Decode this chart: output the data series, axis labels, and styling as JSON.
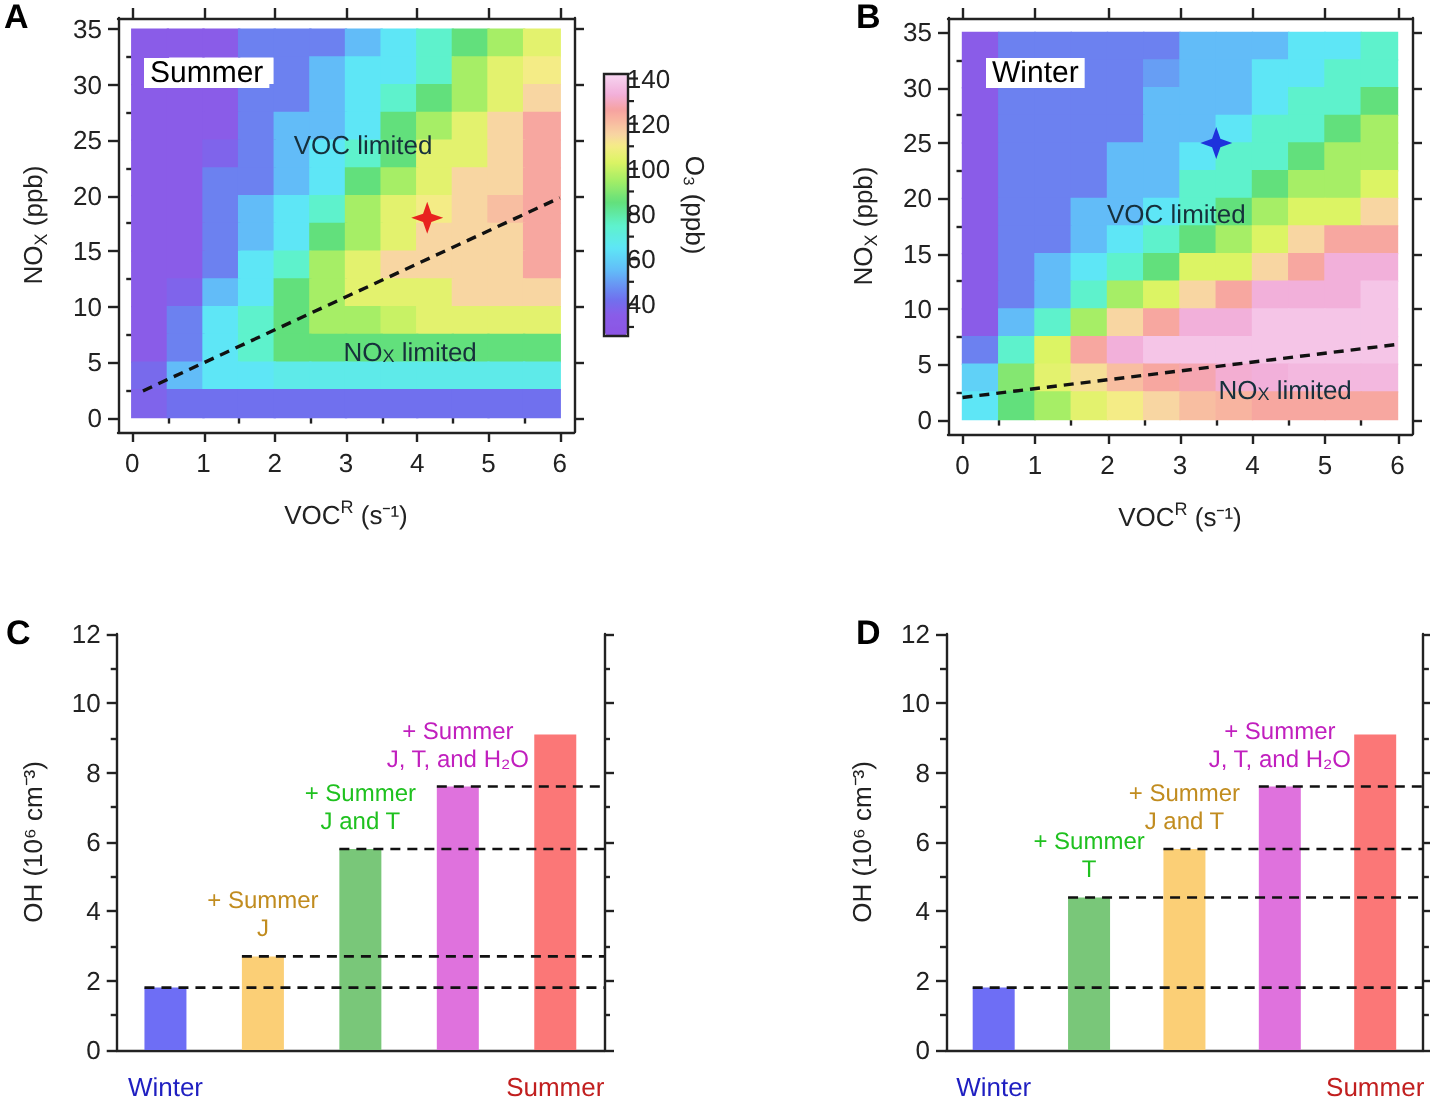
{
  "chart_data": [
    {
      "type": "scatter",
      "title": "A",
      "subtitle": "Summer",
      "xlabel": "VOC$^{R}$ (s⁻¹)",
      "ylabel": "NO$_{X}$ (ppb)",
      "clabel": "O₃ (ppb)",
      "clim": [
        26,
        142
      ],
      "cticks": [
        {
          "value": 30,
          "label": null
        },
        40,
        {
          "value": 50,
          "label": null
        },
        60,
        {
          "value": 70,
          "label": null
        },
        80,
        {
          "value": 90,
          "label": null
        },
        100,
        {
          "value": 110,
          "label": null
        },
        120,
        {
          "value": 130,
          "label": null
        },
        140
      ],
      "xlim": [
        -0.2,
        6.2
      ],
      "xticks": [
        0,
        {
          "value": 0.5,
          "label": null
        },
        1,
        {
          "value": 1.5,
          "label": null
        },
        2,
        {
          "value": 2.5,
          "label": null
        },
        3,
        {
          "value": 3.5,
          "label": null
        },
        4,
        {
          "value": 4.5,
          "label": null
        },
        5,
        {
          "value": 5.5,
          "label": null
        },
        6
      ],
      "ylim": [
        -1.3,
        36
      ],
      "yticks": [
        0,
        {
          "value": 2.5,
          "label": null
        },
        5,
        {
          "value": 7.5,
          "label": null
        },
        10,
        {
          "value": 12.5,
          "label": null
        },
        15,
        {
          "value": 17.5,
          "label": null
        },
        20,
        {
          "value": 22.5,
          "label": null
        },
        25,
        {
          "value": 27.5,
          "label": null
        },
        30,
        {
          "value": 32.5,
          "label": null
        },
        35
      ],
      "series": [
        {
          "marker": "square",
          "x": [
            0.25,
            0.75,
            1.25,
            1.75,
            2.25,
            2.75,
            3.25,
            3.75,
            4.25,
            4.75,
            5.25,
            5.75,
            0.25,
            0.75,
            1.25,
            1.75,
            2.25,
            2.75,
            3.25,
            3.75,
            4.25,
            4.75,
            5.25,
            5.75,
            0.25,
            0.75,
            1.25,
            1.75,
            2.25,
            2.75,
            3.25,
            3.75,
            4.25,
            4.75,
            5.25,
            5.75,
            0.25,
            0.75,
            1.25,
            1.75,
            2.25,
            2.75,
            3.25,
            3.75,
            4.25,
            4.75,
            5.25,
            5.75,
            0.25,
            0.75,
            1.25,
            1.75,
            2.25,
            2.75,
            3.25,
            3.75,
            4.25,
            4.75,
            5.25,
            5.75,
            0.25,
            0.75,
            1.25,
            1.75,
            2.25,
            2.75,
            3.25,
            3.75,
            4.25,
            4.75,
            5.25,
            5.75,
            0.25,
            0.75,
            1.25,
            1.75,
            2.25,
            2.75,
            3.25,
            3.75,
            4.25,
            4.75,
            5.25,
            5.75,
            0.25,
            0.75,
            1.25,
            1.75,
            2.25,
            2.75,
            3.25,
            3.75,
            4.25,
            4.75,
            5.25,
            5.75,
            0.25,
            0.75,
            1.25,
            1.75,
            2.25,
            2.75,
            3.25,
            3.75,
            4.25,
            4.75,
            5.25,
            5.75,
            0.25,
            0.75,
            1.25,
            1.75,
            2.25,
            2.75,
            3.25,
            3.75,
            4.25,
            4.75,
            5.25,
            5.75,
            0.25,
            0.75,
            1.25,
            1.75,
            2.25,
            2.75,
            3.25,
            3.75,
            4.25,
            4.75,
            5.25,
            5.75,
            0.25,
            0.75,
            1.25,
            1.75,
            2.25,
            2.75,
            3.25,
            3.75,
            4.25,
            4.75,
            5.25,
            5.75,
            0.25,
            0.75,
            1.25,
            1.75,
            2.25,
            2.75,
            3.25,
            3.75,
            4.25,
            4.75,
            5.25,
            5.75,
            0.25,
            0.75,
            1.25,
            1.75,
            2.25,
            2.75,
            3.25,
            3.75,
            4.25,
            4.75,
            5.25,
            5.75
          ],
          "values": [
            33.75,
            33.75,
            33.75,
            33.75,
            33.75,
            33.75,
            33.75,
            33.75,
            33.75,
            33.75,
            33.75,
            33.75,
            31.25,
            null,
            null,
            null,
            31.25,
            31.25,
            31.25,
            31.25,
            31.25,
            31.25,
            31.25,
            31.25,
            28.75,
            28.75,
            28.75,
            28.75,
            28.75,
            28.75,
            28.75,
            28.75,
            28.75,
            28.75,
            28.75,
            28.75,
            26.25,
            26.25,
            26.25,
            26.25,
            26.25,
            26.25,
            26.25,
            26.25,
            26.25,
            26.25,
            26.25,
            26.25,
            23.75,
            23.75,
            23.75,
            23.75,
            23.75,
            23.75,
            23.75,
            23.75,
            23.75,
            23.75,
            23.75,
            23.75,
            21.25,
            21.25,
            21.25,
            21.25,
            21.25,
            21.25,
            21.25,
            21.25,
            21.25,
            21.25,
            21.25,
            21.25,
            18.75,
            18.75,
            18.75,
            18.75,
            18.75,
            18.75,
            18.75,
            18.75,
            18.75,
            18.75,
            18.75,
            18.75,
            16.25,
            16.25,
            16.25,
            16.25,
            16.25,
            16.25,
            16.25,
            16.25,
            16.25,
            16.25,
            16.25,
            16.25,
            13.75,
            13.75,
            13.75,
            13.75,
            13.75,
            13.75,
            13.75,
            13.75,
            13.75,
            13.75,
            13.75,
            13.75,
            11.25,
            11.25,
            11.25,
            11.25,
            11.25,
            11.25,
            11.25,
            11.25,
            11.25,
            11.25,
            11.25,
            11.25,
            8.75,
            8.75,
            8.75,
            8.75,
            8.75,
            8.75,
            8.75,
            8.75,
            8.75,
            8.75,
            8.75,
            8.75,
            6.25,
            6.25,
            6.25,
            6.25,
            6.25,
            6.25,
            6.25,
            6.25,
            6.25,
            6.25,
            6.25,
            6.25,
            3.75,
            3.75,
            3.75,
            3.75,
            3.75,
            3.75,
            3.75,
            3.75,
            3.75,
            3.75,
            3.75,
            3.75,
            1.25,
            1.25,
            1.25,
            1.25,
            1.25,
            1.25,
            1.25,
            1.25,
            1.25,
            1.25,
            1.25,
            1.25
          ],
          "colors": [
            "#8a5ce8",
            "#8a5ce8",
            "#8a5ce8",
            "#6c81f0",
            "#6c81f0",
            "#6c81f0",
            "#62bcf8",
            "#5ee6f6",
            "#5ef2cc",
            "#62e07c",
            "#a6ee66",
            "#e3f26e",
            "#8a5ce8",
            null,
            null,
            null,
            "#6c81f0",
            "#62bcf8",
            "#5ee6f6",
            "#5ee6f6",
            "#5ef2cc",
            "#a6ee66",
            "#e3f26e",
            "#f4ec86",
            "#8a5ce8",
            "#8a5ce8",
            "#8a5ce8",
            "#6c81f0",
            "#6c81f0",
            "#62bcf8",
            "#5ee6f6",
            "#5ef2cc",
            "#62e07c",
            "#a6ee66",
            "#e3f26e",
            "#f8d6a2",
            "#8a5ce8",
            "#8a5ce8",
            "#8a5ce8",
            "#6c81f0",
            "#62bcf8",
            "#62bcf8",
            "#5ee6f6",
            "#62e07c",
            "#a6ee66",
            "#e3f26e",
            "#f8d6a2",
            "#f7a7a0",
            "#8a5ce8",
            "#8a5ce8",
            "#7f64eb",
            "#6c81f0",
            "#62bcf8",
            "#5ee6f6",
            "#5ef2cc",
            "#62e07c",
            "#e3f26e",
            "#e3f26e",
            "#f8d6a2",
            "#f7a7a0",
            "#8a5ce8",
            "#8a5ce8",
            "#6c81f0",
            "#6c81f0",
            "#62bcf8",
            "#5ee6f6",
            "#62e07c",
            "#a6ee66",
            "#e3f26e",
            "#f8d6a2",
            "#f8d6a2",
            "#f7a7a0",
            "#8a5ce8",
            "#8a5ce8",
            "#6c81f0",
            "#62bcf8",
            "#5ee6f6",
            "#5ef2cc",
            "#a6ee66",
            "#e3f26e",
            "#f4ec86",
            "#f8d6a2",
            "#f8bea1",
            "#f7a7a0",
            "#8a5ce8",
            "#8a5ce8",
            "#6c81f0",
            "#62bcf8",
            "#5ee6f6",
            "#62e07c",
            "#a6ee66",
            "#e3f26e",
            "#f8d6a2",
            "#f8d6a2",
            "#f8d6a2",
            "#f7a7a0",
            "#8a5ce8",
            "#8a5ce8",
            "#6c81f0",
            "#5ee6f6",
            "#5ef2cc",
            "#a6ee66",
            "#e3f26e",
            "#f8d6a2",
            "#f8d6a2",
            "#f8d6a2",
            "#f8d6a2",
            "#f7a7a0",
            "#8a5ce8",
            "#7f64eb",
            "#62bcf8",
            "#5ee6f6",
            "#62e07c",
            "#a6ee66",
            "#e3f26e",
            "#e3f26e",
            "#e3f26e",
            "#f8d6a2",
            "#f8d6a2",
            "#f8d6a2",
            "#8a5ce8",
            "#6c81f0",
            "#5ee6f6",
            "#5ef2cc",
            "#62e07c",
            "#a6ee66",
            "#a6ee66",
            "#c8f265",
            "#e3f26e",
            "#e3f26e",
            "#e3f26e",
            "#e3f26e",
            "#8a5ce8",
            "#6c81f0",
            "#5ee6f6",
            "#5ef2cc",
            "#62e07c",
            "#62e07c",
            "#62e07c",
            "#62e07c",
            "#62e07c",
            "#62e07c",
            "#62e07c",
            "#62e07c",
            "#786aec",
            "#62bcf8",
            "#5ee6f6",
            "#5ee6f6",
            "#5eeae9",
            "#5eeae9",
            "#5eeae9",
            "#5eeae9",
            "#5eeae9",
            "#5eeae9",
            "#5eeae9",
            "#5eeae9",
            "#7f64eb",
            "#7070ee",
            "#7070ee",
            "#7070ee",
            "#7070ee",
            "#7070ee",
            "#7070ee",
            "#7070ee",
            "#7070ee",
            "#7070ee",
            "#7070ee",
            "#7070ee"
          ]
        },
        {
          "type": "line",
          "marker": "none",
          "line_style": "dashed",
          "color": "#111111",
          "x": [
            0.15,
            6
          ],
          "values": [
            2.4,
            19.8
          ]
        },
        {
          "marker": "star",
          "color": "#e8231f",
          "x": [
            4.14
          ],
          "values": [
            18
          ]
        }
      ],
      "annotations": [
        {
          "text": "VOC limited",
          "x": 3.24,
          "y": 24.6
        },
        {
          "text": "NO$_{X}$ limited",
          "x": 3.9,
          "y": 5.9
        }
      ]
    },
    {
      "type": "scatter",
      "title": "B",
      "subtitle": "Winter",
      "xlabel": "VOC$^{R}$ (s⁻¹)",
      "ylabel": "NO$_{X}$ (ppb)",
      "xlim": [
        -0.2,
        6.2
      ],
      "xticks": [
        0,
        {
          "value": 0.5,
          "label": null
        },
        1,
        {
          "value": 1.5,
          "label": null
        },
        2,
        {
          "value": 2.5,
          "label": null
        },
        3,
        {
          "value": 3.5,
          "label": null
        },
        4,
        {
          "value": 4.5,
          "label": null
        },
        5,
        {
          "value": 5.5,
          "label": null
        },
        6
      ],
      "ylim": [
        -1.3,
        36.3
      ],
      "yticks": [
        0,
        {
          "value": 2.5,
          "label": null
        },
        5,
        {
          "value": 7.5,
          "label": null
        },
        10,
        {
          "value": 12.5,
          "label": null
        },
        15,
        {
          "value": 17.5,
          "label": null
        },
        20,
        {
          "value": 22.5,
          "label": null
        },
        25,
        {
          "value": 27.5,
          "label": null
        },
        30,
        {
          "value": 32.5,
          "label": null
        },
        35
      ],
      "series": [
        {
          "marker": "square",
          "x": [
            0.25,
            0.75,
            1.25,
            1.75,
            2.25,
            2.75,
            3.25,
            3.75,
            4.25,
            4.75,
            5.25,
            5.75,
            0.25,
            0.75,
            1.25,
            1.75,
            2.25,
            2.75,
            3.25,
            3.75,
            4.25,
            4.75,
            5.25,
            5.75,
            0.25,
            0.75,
            1.25,
            1.75,
            2.25,
            2.75,
            3.25,
            3.75,
            4.25,
            4.75,
            5.25,
            5.75,
            0.25,
            0.75,
            1.25,
            1.75,
            2.25,
            2.75,
            3.25,
            3.75,
            4.25,
            4.75,
            5.25,
            5.75,
            0.25,
            0.75,
            1.25,
            1.75,
            2.25,
            2.75,
            3.25,
            3.75,
            4.25,
            4.75,
            5.25,
            5.75,
            0.25,
            0.75,
            1.25,
            1.75,
            2.25,
            2.75,
            3.25,
            3.75,
            4.25,
            4.75,
            5.25,
            5.75,
            0.25,
            0.75,
            1.25,
            1.75,
            2.25,
            2.75,
            3.25,
            3.75,
            4.25,
            4.75,
            5.25,
            5.75,
            0.25,
            0.75,
            1.25,
            1.75,
            2.25,
            2.75,
            3.25,
            3.75,
            4.25,
            4.75,
            5.25,
            5.75,
            0.25,
            0.75,
            1.25,
            1.75,
            2.25,
            2.75,
            3.25,
            3.75,
            4.25,
            4.75,
            5.25,
            5.75,
            0.25,
            0.75,
            1.25,
            1.75,
            2.25,
            2.75,
            3.25,
            3.75,
            4.25,
            4.75,
            5.25,
            5.75,
            0.25,
            0.75,
            1.25,
            1.75,
            2.25,
            2.75,
            3.25,
            3.75,
            4.25,
            4.75,
            5.25,
            5.75,
            0.25,
            0.75,
            1.25,
            1.75,
            2.25,
            2.75,
            3.25,
            3.75,
            4.25,
            4.75,
            5.25,
            5.75,
            0.25,
            0.75,
            1.25,
            1.75,
            2.25,
            2.75,
            3.25,
            3.75,
            4.25,
            4.75,
            5.25,
            5.75,
            0.25,
            0.75,
            1.25,
            1.75,
            2.25,
            2.75,
            3.25,
            3.75,
            4.25,
            4.75,
            5.25,
            5.75
          ],
          "values": [
            33.75,
            33.75,
            33.75,
            33.75,
            33.75,
            33.75,
            33.75,
            33.75,
            33.75,
            33.75,
            33.75,
            33.75,
            31.25,
            null,
            null,
            31.25,
            31.25,
            31.25,
            31.25,
            31.25,
            31.25,
            31.25,
            31.25,
            31.25,
            28.75,
            28.75,
            28.75,
            28.75,
            28.75,
            28.75,
            28.75,
            28.75,
            28.75,
            28.75,
            28.75,
            28.75,
            26.25,
            26.25,
            26.25,
            26.25,
            26.25,
            26.25,
            26.25,
            26.25,
            26.25,
            26.25,
            26.25,
            26.25,
            23.75,
            23.75,
            23.75,
            23.75,
            23.75,
            23.75,
            23.75,
            23.75,
            23.75,
            23.75,
            23.75,
            23.75,
            21.25,
            21.25,
            21.25,
            21.25,
            21.25,
            21.25,
            21.25,
            21.25,
            21.25,
            21.25,
            21.25,
            21.25,
            18.75,
            18.75,
            18.75,
            18.75,
            18.75,
            18.75,
            18.75,
            18.75,
            18.75,
            18.75,
            18.75,
            18.75,
            16.25,
            16.25,
            16.25,
            16.25,
            16.25,
            16.25,
            16.25,
            16.25,
            16.25,
            16.25,
            16.25,
            16.25,
            13.75,
            13.75,
            13.75,
            13.75,
            13.75,
            13.75,
            13.75,
            13.75,
            13.75,
            13.75,
            13.75,
            13.75,
            11.25,
            11.25,
            11.25,
            11.25,
            11.25,
            11.25,
            11.25,
            11.25,
            11.25,
            11.25,
            11.25,
            11.25,
            8.75,
            8.75,
            8.75,
            8.75,
            8.75,
            8.75,
            8.75,
            8.75,
            8.75,
            8.75,
            8.75,
            8.75,
            6.25,
            6.25,
            6.25,
            6.25,
            6.25,
            6.25,
            6.25,
            6.25,
            6.25,
            6.25,
            6.25,
            6.25,
            3.75,
            3.75,
            3.75,
            3.75,
            3.75,
            3.75,
            3.75,
            3.75,
            3.75,
            3.75,
            3.75,
            3.75,
            1.25,
            1.25,
            1.25,
            1.25,
            1.25,
            1.25,
            1.25,
            1.25,
            1.25,
            1.25,
            1.25,
            1.25
          ],
          "colors": [
            "#8a5ce8",
            "#6c81f0",
            "#6c81f0",
            "#6c81f0",
            "#6c81f0",
            "#6c81f0",
            "#62bcf8",
            "#62bcf8",
            "#62bcf8",
            "#5ee6f6",
            "#5ee6f6",
            "#5ef2cc",
            "#8a5ce8",
            null,
            null,
            "#6c81f0",
            "#6c81f0",
            "#679ef4",
            "#62bcf8",
            "#62bcf8",
            "#5ee6f6",
            "#5ee6f6",
            "#5ef2cc",
            "#5ef2cc",
            "#8a5ce8",
            "#6c81f0",
            "#6c81f0",
            "#6c81f0",
            "#6c81f0",
            "#62bcf8",
            "#62bcf8",
            "#62bcf8",
            "#5ee6f6",
            "#5ef2cc",
            "#5ef2cc",
            "#62e07c",
            "#8a5ce8",
            "#6c81f0",
            "#6c81f0",
            "#6c81f0",
            "#6c81f0",
            "#62bcf8",
            "#62bcf8",
            "#5ee6f6",
            "#5ef2cc",
            "#5ef2cc",
            "#62e07c",
            "#a6ee66",
            "#8a5ce8",
            "#6c81f0",
            "#6c81f0",
            "#6c81f0",
            "#62bcf8",
            "#62bcf8",
            "#5ee6f6",
            "#5ef2cc",
            "#5ef2cc",
            "#62e07c",
            "#a6ee66",
            "#a6ee66",
            "#8a5ce8",
            "#6c81f0",
            "#6c81f0",
            "#6c81f0",
            "#62bcf8",
            "#62bcf8",
            "#5ef2cc",
            "#5ef2cc",
            "#62e07c",
            "#a6ee66",
            "#a6ee66",
            "#dcf464",
            "#8a5ce8",
            "#6c81f0",
            "#6c81f0",
            "#62bcf8",
            "#62bcf8",
            "#5ee6f6",
            "#5ef2cc",
            "#62e07c",
            "#a6ee66",
            "#dcf464",
            "#dcf464",
            "#f8d6a2",
            "#8a5ce8",
            "#6c81f0",
            "#6c81f0",
            "#62bcf8",
            "#5ee6f6",
            "#5ef2cc",
            "#62e07c",
            "#a6ee66",
            "#dcf464",
            "#f8d6a2",
            "#f7a7a0",
            "#f7a7a0",
            "#8a5ce8",
            "#6c81f0",
            "#62bcf8",
            "#5ee6f6",
            "#5ef2cc",
            "#62e07c",
            "#dcf464",
            "#dcf464",
            "#f8d6a2",
            "#f7a7a0",
            "#f2b0da",
            "#f2b0da",
            "#8a5ce8",
            "#6c81f0",
            "#62bcf8",
            "#5ef2cc",
            "#a6ee66",
            "#dcf464",
            "#f8d6a2",
            "#f7a7a0",
            "#f2b0da",
            "#f2b0da",
            "#f2b0da",
            "#f5c5e7",
            "#8a5ce8",
            "#62bcf8",
            "#5ef2cc",
            "#a6ee66",
            "#f8d6a2",
            "#f7a7a0",
            "#f2b0da",
            "#f2b0da",
            "#f5c5e7",
            "#f5c5e7",
            "#f5c5e7",
            "#f5c5e7",
            "#6c81f0",
            "#5ef2cc",
            "#dcf464",
            "#f7a7a0",
            "#f2b0da",
            "#f5c5e7",
            "#f5c5e7",
            "#f5c5e7",
            "#f5c5e7",
            "#f5c5e7",
            "#f5c5e7",
            "#f5c5e7",
            "#60d1f7",
            "#84e771",
            "#e3f26e",
            "#f6df97",
            "#f8bea1",
            "#f7a7a0",
            "#f5a6b1",
            "#f3aed2",
            "#f2b0da",
            "#f3b8df",
            "#f3b8df",
            "#f3b8df",
            "#5ee6f6",
            "#62e07c",
            "#a6ee66",
            "#e3f26e",
            "#f4ec86",
            "#f8d6a2",
            "#f8bea1",
            "#f8b4a0",
            "#f7a7a0",
            "#f7a7a0",
            "#f7a7a0",
            "#f7a7a0"
          ]
        },
        {
          "type": "line",
          "marker": "none",
          "line_style": "dashed",
          "color": "#111111",
          "x": [
            0,
            6
          ],
          "values": [
            2.0,
            6.8
          ]
        },
        {
          "marker": "star",
          "color": "#1e32dc",
          "x": [
            3.5
          ],
          "values": [
            25
          ]
        }
      ],
      "annotations": [
        {
          "text": "VOC limited",
          "x": 2.95,
          "y": 18.6
        },
        {
          "text": "NO$_{X}$ limited",
          "x": 4.45,
          "y": 2.7
        }
      ]
    },
    {
      "type": "bar",
      "title": "C",
      "ylabel": "OH (10⁶ cm⁻³)",
      "categories": [
        "Winter",
        null,
        null,
        null,
        "Summer"
      ],
      "ylim": [
        0,
        12
      ],
      "yticks": [
        0,
        {
          "value": 1,
          "label": null
        },
        2,
        {
          "value": 3,
          "label": null
        },
        4,
        {
          "value": 5,
          "label": null
        },
        6,
        {
          "value": 7,
          "label": null
        },
        8,
        {
          "value": 9,
          "label": null
        },
        10,
        {
          "value": 11,
          "label": null
        },
        12
      ],
      "series": [
        {
          "color": "#6e6ef5",
          "values": [
            1.8,
            null,
            null,
            null,
            null
          ]
        },
        {
          "name": "+ Summer\nJ",
          "color": "#fbcf76",
          "values": [
            null,
            2.7,
            null,
            null,
            null
          ]
        },
        {
          "name": "+ Summer\nJ and T",
          "color": "#79c779",
          "values": [
            null,
            null,
            5.8,
            null,
            null
          ]
        },
        {
          "name": "+ Summer\nJ, T, and H₂O",
          "color": "#df72dd",
          "values": [
            null,
            null,
            null,
            7.6,
            null
          ]
        },
        {
          "color": "#fb7777",
          "values": [
            null,
            null,
            null,
            null,
            9.1
          ]
        }
      ],
      "ref_lines": [
        {
          "axis": "y",
          "value": 1.8,
          "color": "#111111",
          "line_style": "dashed"
        },
        {
          "axis": "y",
          "value": 2.7,
          "color": "#111111",
          "line_style": "dashed"
        },
        {
          "axis": "y",
          "value": 5.8,
          "color": "#111111",
          "line_style": "dashed"
        },
        {
          "axis": "y",
          "value": 7.6,
          "color": "#111111",
          "line_style": "dashed"
        }
      ]
    },
    {
      "type": "bar",
      "title": "D",
      "ylabel": "OH (10⁶ cm⁻³)",
      "categories": [
        "Winter",
        null,
        null,
        null,
        "Summer"
      ],
      "ylim": [
        0,
        12
      ],
      "yticks": [
        0,
        {
          "value": 1,
          "label": null
        },
        2,
        {
          "value": 3,
          "label": null
        },
        4,
        {
          "value": 5,
          "label": null
        },
        6,
        {
          "value": 7,
          "label": null
        },
        8,
        {
          "value": 9,
          "label": null
        },
        10,
        {
          "value": 11,
          "label": null
        },
        12
      ],
      "series": [
        {
          "color": "#6e6ef5",
          "values": [
            1.8,
            null,
            null,
            null,
            null
          ]
        },
        {
          "name": "+ Summer\nT",
          "color": "#79c779",
          "values": [
            null,
            4.4,
            null,
            null,
            null
          ]
        },
        {
          "name": "+ Summer\nJ and T",
          "color": "#fbcf76",
          "values": [
            null,
            null,
            5.8,
            null,
            null
          ]
        },
        {
          "name": "+ Summer\nJ, T, and H₂O",
          "color": "#df72dd",
          "values": [
            null,
            null,
            null,
            7.6,
            null
          ]
        },
        {
          "color": "#fb7777",
          "values": [
            null,
            null,
            null,
            null,
            9.1
          ]
        }
      ],
      "ref_lines": [
        {
          "axis": "y",
          "value": 1.8,
          "color": "#111111",
          "line_style": "dashed"
        },
        {
          "axis": "y",
          "value": 4.4,
          "color": "#111111",
          "line_style": "dashed"
        },
        {
          "axis": "y",
          "value": 5.8,
          "color": "#111111",
          "line_style": "dashed"
        },
        {
          "axis": "y",
          "value": 7.6,
          "color": "#111111",
          "line_style": "dashed"
        }
      ]
    }
  ]
}
